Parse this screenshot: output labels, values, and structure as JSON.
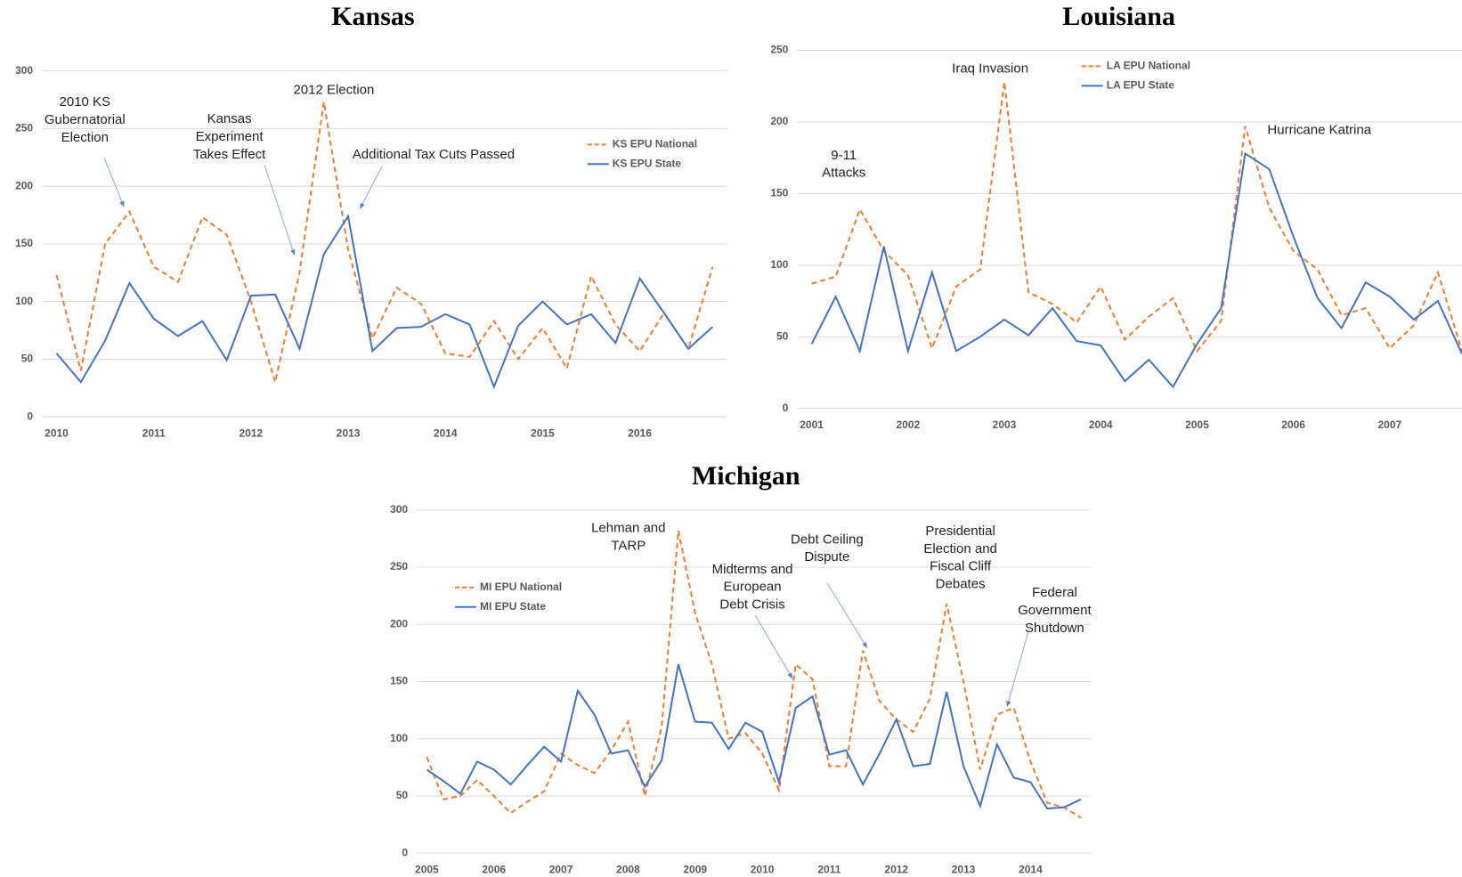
{
  "chart_data": [
    {
      "type": "line",
      "title": "Kansas",
      "x": [
        2010,
        2010.25,
        2010.5,
        2010.75,
        2011,
        2011.25,
        2011.5,
        2011.75,
        2012,
        2012.25,
        2012.5,
        2012.75,
        2013,
        2013.25,
        2013.5,
        2013.75,
        2014,
        2014.25,
        2014.5,
        2014.75,
        2015,
        2015.25,
        2015.5,
        2015.75,
        2016,
        2016.25,
        2016.5,
        2016.75
      ],
      "series": [
        {
          "name": "KS EPU National",
          "color": "#ED7D31",
          "dashed": true,
          "values": [
            123,
            40,
            150,
            178,
            130,
            117,
            173,
            158,
            100,
            30,
            125,
            273,
            145,
            68,
            112,
            98,
            55,
            52,
            83,
            50,
            77,
            42,
            122,
            80,
            57,
            90,
            59,
            130
          ]
        },
        {
          "name": "KS EPU State",
          "color": "#4472C4",
          "dashed": false,
          "values": [
            55,
            30,
            66,
            116,
            85,
            70,
            83,
            49,
            105,
            106,
            59,
            141,
            174,
            57,
            77,
            78,
            89,
            80,
            26,
            79,
            100,
            80,
            89,
            64,
            120,
            90,
            59,
            78
          ]
        }
      ],
      "xlim": [
        2009.85,
        2016.9
      ],
      "xticks": [
        2010,
        2011,
        2012,
        2013,
        2014,
        2015,
        2016
      ],
      "ylim": [
        0,
        300
      ],
      "yticks": [
        0,
        50,
        100,
        150,
        200,
        250,
        300
      ],
      "grid": true,
      "annotations": [
        {
          "lines": [
            "2010 KS",
            "Gubernatorial",
            "Election"
          ]
        },
        {
          "lines": [
            "Kansas",
            "Experiment",
            "Takes Effect"
          ]
        },
        {
          "lines": [
            "2012 Election"
          ]
        },
        {
          "lines": [
            "Additional Tax Cuts Passed"
          ]
        }
      ]
    },
    {
      "type": "line",
      "title": "Louisiana",
      "x": [
        2001,
        2001.25,
        2001.5,
        2001.75,
        2002,
        2002.25,
        2002.5,
        2002.75,
        2003,
        2003.25,
        2003.5,
        2003.75,
        2004,
        2004.25,
        2004.5,
        2004.75,
        2005,
        2005.25,
        2005.5,
        2005.75,
        2006,
        2006.25,
        2006.5,
        2006.75,
        2007,
        2007.25,
        2007.5,
        2007.75
      ],
      "series": [
        {
          "name": "LA EPU National",
          "color": "#ED7D31",
          "dashed": true,
          "values": [
            87,
            92,
            139,
            110,
            93,
            42,
            85,
            97,
            228,
            81,
            73,
            60,
            85,
            48,
            64,
            77,
            40,
            61,
            197,
            140,
            110,
            97,
            65,
            70,
            42,
            58,
            95,
            40
          ]
        },
        {
          "name": "LA EPU State",
          "color": "#4472C4",
          "dashed": false,
          "values": [
            45,
            78,
            40,
            113,
            40,
            95,
            40,
            50,
            62,
            51,
            70,
            47,
            44,
            19,
            34,
            15,
            45,
            70,
            178,
            167,
            120,
            77,
            56,
            88,
            78,
            62,
            75,
            38
          ]
        }
      ],
      "xlim": [
        2000.85,
        2007.75
      ],
      "xticks": [
        2001,
        2002,
        2003,
        2004,
        2005,
        2006,
        2007
      ],
      "ylim": [
        0,
        250
      ],
      "yticks": [
        0,
        50,
        100,
        150,
        200,
        250
      ],
      "grid": true,
      "annotations": [
        {
          "lines": [
            "9-11",
            "Attacks"
          ]
        },
        {
          "lines": [
            "Iraq Invasion"
          ]
        },
        {
          "lines": [
            "Hurricane Katrina"
          ]
        }
      ]
    },
    {
      "type": "line",
      "title": "Michigan",
      "x": [
        2005,
        2005.25,
        2005.5,
        2005.75,
        2006,
        2006.25,
        2006.5,
        2006.75,
        2007,
        2007.25,
        2007.5,
        2007.75,
        2008,
        2008.25,
        2008.5,
        2008.75,
        2009,
        2009.25,
        2009.5,
        2009.75,
        2010,
        2010.25,
        2010.5,
        2010.75,
        2011,
        2011.25,
        2011.5,
        2011.75,
        2012,
        2012.25,
        2012.5,
        2012.75,
        2013,
        2013.25,
        2013.5,
        2013.75,
        2014,
        2014.25,
        2014.5,
        2014.75
      ],
      "series": [
        {
          "name": "MI EPU National",
          "color": "#ED7D31",
          "dashed": true,
          "values": [
            84,
            47,
            50,
            64,
            50,
            35,
            45,
            54,
            87,
            77,
            70,
            90,
            115,
            50,
            110,
            282,
            210,
            165,
            100,
            105,
            87,
            55,
            165,
            152,
            76,
            76,
            177,
            133,
            117,
            106,
            135,
            218,
            150,
            73,
            121,
            127,
            80,
            44,
            40,
            31
          ]
        },
        {
          "name": "MI EPU State",
          "color": "#4472C4",
          "dashed": false,
          "values": [
            73,
            63,
            52,
            80,
            73,
            60,
            77,
            93,
            80,
            142,
            121,
            87,
            90,
            58,
            81,
            165,
            115,
            114,
            91,
            114,
            106,
            62,
            127,
            137,
            86,
            90,
            60,
            87,
            117,
            76,
            78,
            141,
            76,
            41,
            95,
            66,
            62,
            39,
            40,
            47
          ]
        }
      ],
      "xlim": [
        2004.85,
        2014.9
      ],
      "xticks": [
        2005,
        2006,
        2007,
        2008,
        2009,
        2010,
        2011,
        2012,
        2013,
        2014
      ],
      "ylim": [
        0,
        300
      ],
      "yticks": [
        0,
        50,
        100,
        150,
        200,
        250,
        300
      ],
      "grid": true,
      "annotations": [
        {
          "lines": [
            "Lehman and",
            "TARP"
          ]
        },
        {
          "lines": [
            "Midterms and",
            "European",
            "Debt Crisis"
          ]
        },
        {
          "lines": [
            "Debt Ceiling",
            "Dispute"
          ]
        },
        {
          "lines": [
            "Presidential",
            "Election and",
            "Fiscal Cliff",
            "Debates"
          ]
        },
        {
          "lines": [
            "Federal",
            "Government",
            "Shutdown"
          ]
        }
      ]
    }
  ]
}
